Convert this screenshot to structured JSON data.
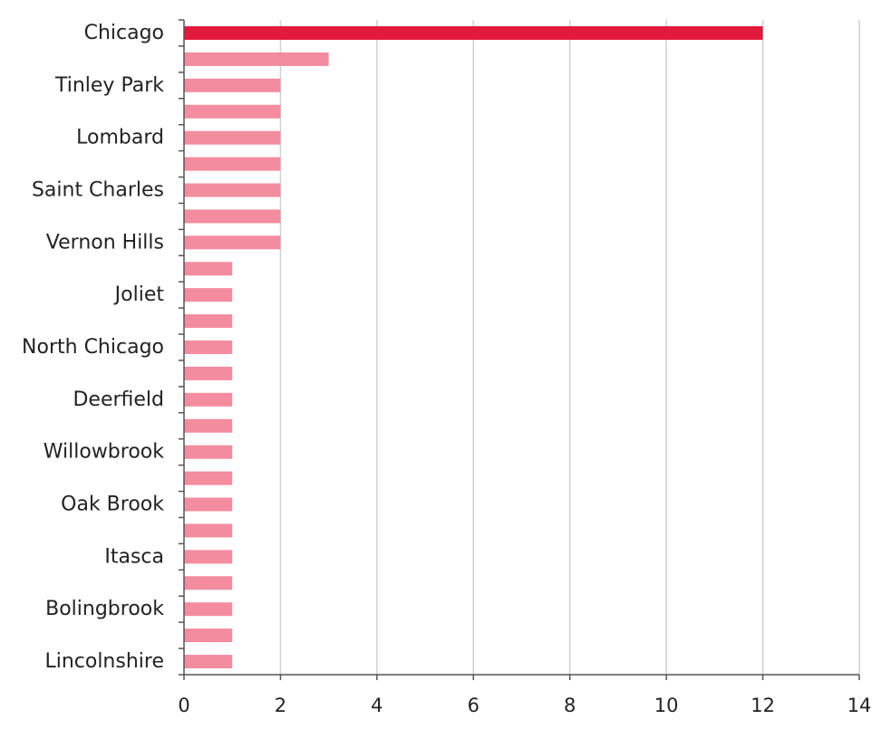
{
  "chart_data": {
    "type": "bar",
    "orientation": "horizontal",
    "title": "",
    "xlabel": "",
    "ylabel": "",
    "xlim": [
      0,
      14
    ],
    "x_ticks": [
      0,
      2,
      4,
      6,
      8,
      10,
      12,
      14
    ],
    "grid": "vertical",
    "legend": "none",
    "highlight_color": "#e31a3b",
    "bar_color": "#f28c9e",
    "categories": [
      "Chicago",
      "",
      "Tinley Park",
      "",
      "Lombard",
      "",
      "Saint Charles",
      "",
      "Vernon Hills",
      "",
      "Joliet",
      "",
      "North Chicago",
      "",
      "Deerfield",
      "",
      "Willowbrook",
      "",
      "Oak Brook",
      "",
      "Itasca",
      "",
      "Bolingbrook",
      "",
      "Lincolnshire"
    ],
    "values": [
      12,
      3,
      2,
      2,
      2,
      2,
      2,
      2,
      2,
      1,
      1,
      1,
      1,
      1,
      1,
      1,
      1,
      1,
      1,
      1,
      1,
      1,
      1,
      1,
      1
    ],
    "highlight_index": 0
  }
}
